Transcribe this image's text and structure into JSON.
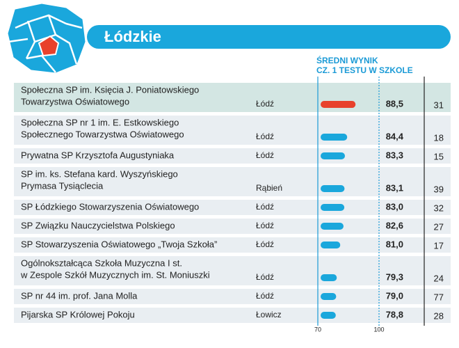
{
  "chart_data": {
    "type": "bar",
    "title": "Łódzkie",
    "value_header": [
      "ŚREDNI WYNIK",
      "CZ. 1 TESTU W SZKOLE"
    ],
    "categories": [
      [
        "Społeczna SP im. Księcia J. Poniatowskiego",
        "Towarzystwa Oświatowego"
      ],
      [
        "Społeczna SP nr 1 im. E. Estkowskiego",
        "Społecznego Towarzystwa Oświatowego"
      ],
      [
        "Prywatna SP Krzysztofa Augustyniaka"
      ],
      [
        "SP im. ks. Stefana kard. Wyszyńskiego",
        "Prymasa Tysiąclecia"
      ],
      [
        "SP Łódzkiego Stowarzyszenia Oświatowego"
      ],
      [
        "SP Związku Nauczycielstwa Polskiego"
      ],
      [
        "SP Stowarzyszenia Oświatowego „Twoja Szkoła”"
      ],
      [
        "Ogólnokształcąca Szkoła Muzyczna I st.",
        "w Zespole Szkół Muzycznych im. St. Moniuszki"
      ],
      [
        "SP nr 44 im. prof. Jana Molla"
      ],
      [
        "Pijarska SP Królowej Pokoju"
      ]
    ],
    "towns": [
      "Łódź",
      "Łódź",
      "Łódź",
      "Rąbień",
      "Łódź",
      "Łódź",
      "Łódź",
      "Łódź",
      "Łódź",
      "Łowicz"
    ],
    "values": [
      88.5,
      84.4,
      83.3,
      83.1,
      83.0,
      82.6,
      81.0,
      79.3,
      79.0,
      78.8
    ],
    "value_labels": [
      "88,5",
      "84,4",
      "83,3",
      "83,1",
      "83,0",
      "82,6",
      "81,0",
      "79,3",
      "79,0",
      "78,8"
    ],
    "colors": [
      "#e8412c",
      "#1aa7dc",
      "#1aa7dc",
      "#1aa7dc",
      "#1aa7dc",
      "#1aa7dc",
      "#1aa7dc",
      "#1aa7dc",
      "#1aa7dc",
      "#1aa7dc"
    ],
    "column_values": [
      31,
      18,
      15,
      39,
      32,
      27,
      17,
      24,
      77,
      28
    ],
    "xlim": [
      70,
      100
    ],
    "xticks": [
      70,
      100
    ]
  }
}
